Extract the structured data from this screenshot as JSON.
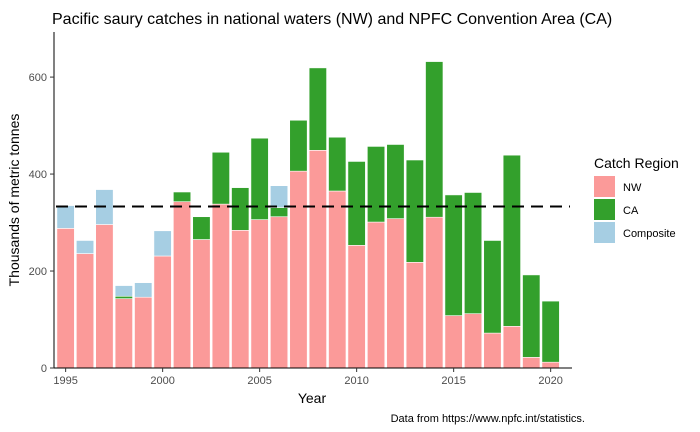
{
  "chart_data": {
    "type": "bar",
    "stacked": true,
    "title": "Pacific saury catches in national waters (NW) and NPFC Convention Area (CA)",
    "xlabel": "Year",
    "ylabel": "Thousands of metric tonnes",
    "caption": "Data from https://www.npfc.int/statistics.",
    "x": [
      1995,
      1996,
      1997,
      1998,
      1999,
      2000,
      2001,
      2002,
      2003,
      2004,
      2005,
      2006,
      2007,
      2008,
      2009,
      2010,
      2011,
      2012,
      2013,
      2014,
      2015,
      2016,
      2017,
      2018,
      2019,
      2020
    ],
    "series": [
      {
        "name": "NW",
        "color": "#fb9a99",
        "values": [
          288,
          236,
          296,
          143,
          146,
          231,
          343,
          265,
          338,
          284,
          306,
          312,
          406,
          449,
          365,
          253,
          301,
          308,
          218,
          311,
          108,
          112,
          72,
          86,
          22,
          12
        ]
      },
      {
        "name": "CA",
        "color": "#33a02c",
        "values": [
          0,
          0,
          0,
          5,
          0,
          0,
          20,
          47,
          107,
          88,
          168,
          19,
          105,
          170,
          111,
          173,
          156,
          153,
          211,
          321,
          249,
          250,
          191,
          353,
          170,
          126
        ]
      },
      {
        "name": "Composite",
        "color": "#a6cee3",
        "values": [
          47,
          27,
          72,
          22,
          30,
          52,
          0,
          0,
          0,
          0,
          0,
          45,
          0,
          0,
          0,
          0,
          0,
          0,
          0,
          0,
          0,
          0,
          0,
          0,
          0,
          0
        ]
      }
    ],
    "reference_line": {
      "y": 333,
      "style": "dashed",
      "color": "#000000"
    },
    "xticks": [
      1995,
      2000,
      2005,
      2010,
      2015,
      2020
    ],
    "yticks": [
      0,
      200,
      400,
      600
    ],
    "xlim": [
      1994.4,
      2021.1
    ],
    "ylim": [
      0,
      693
    ],
    "grid": false,
    "legend": {
      "title": "Catch Region",
      "position": "right",
      "items": [
        "NW",
        "CA",
        "Composite"
      ]
    }
  }
}
